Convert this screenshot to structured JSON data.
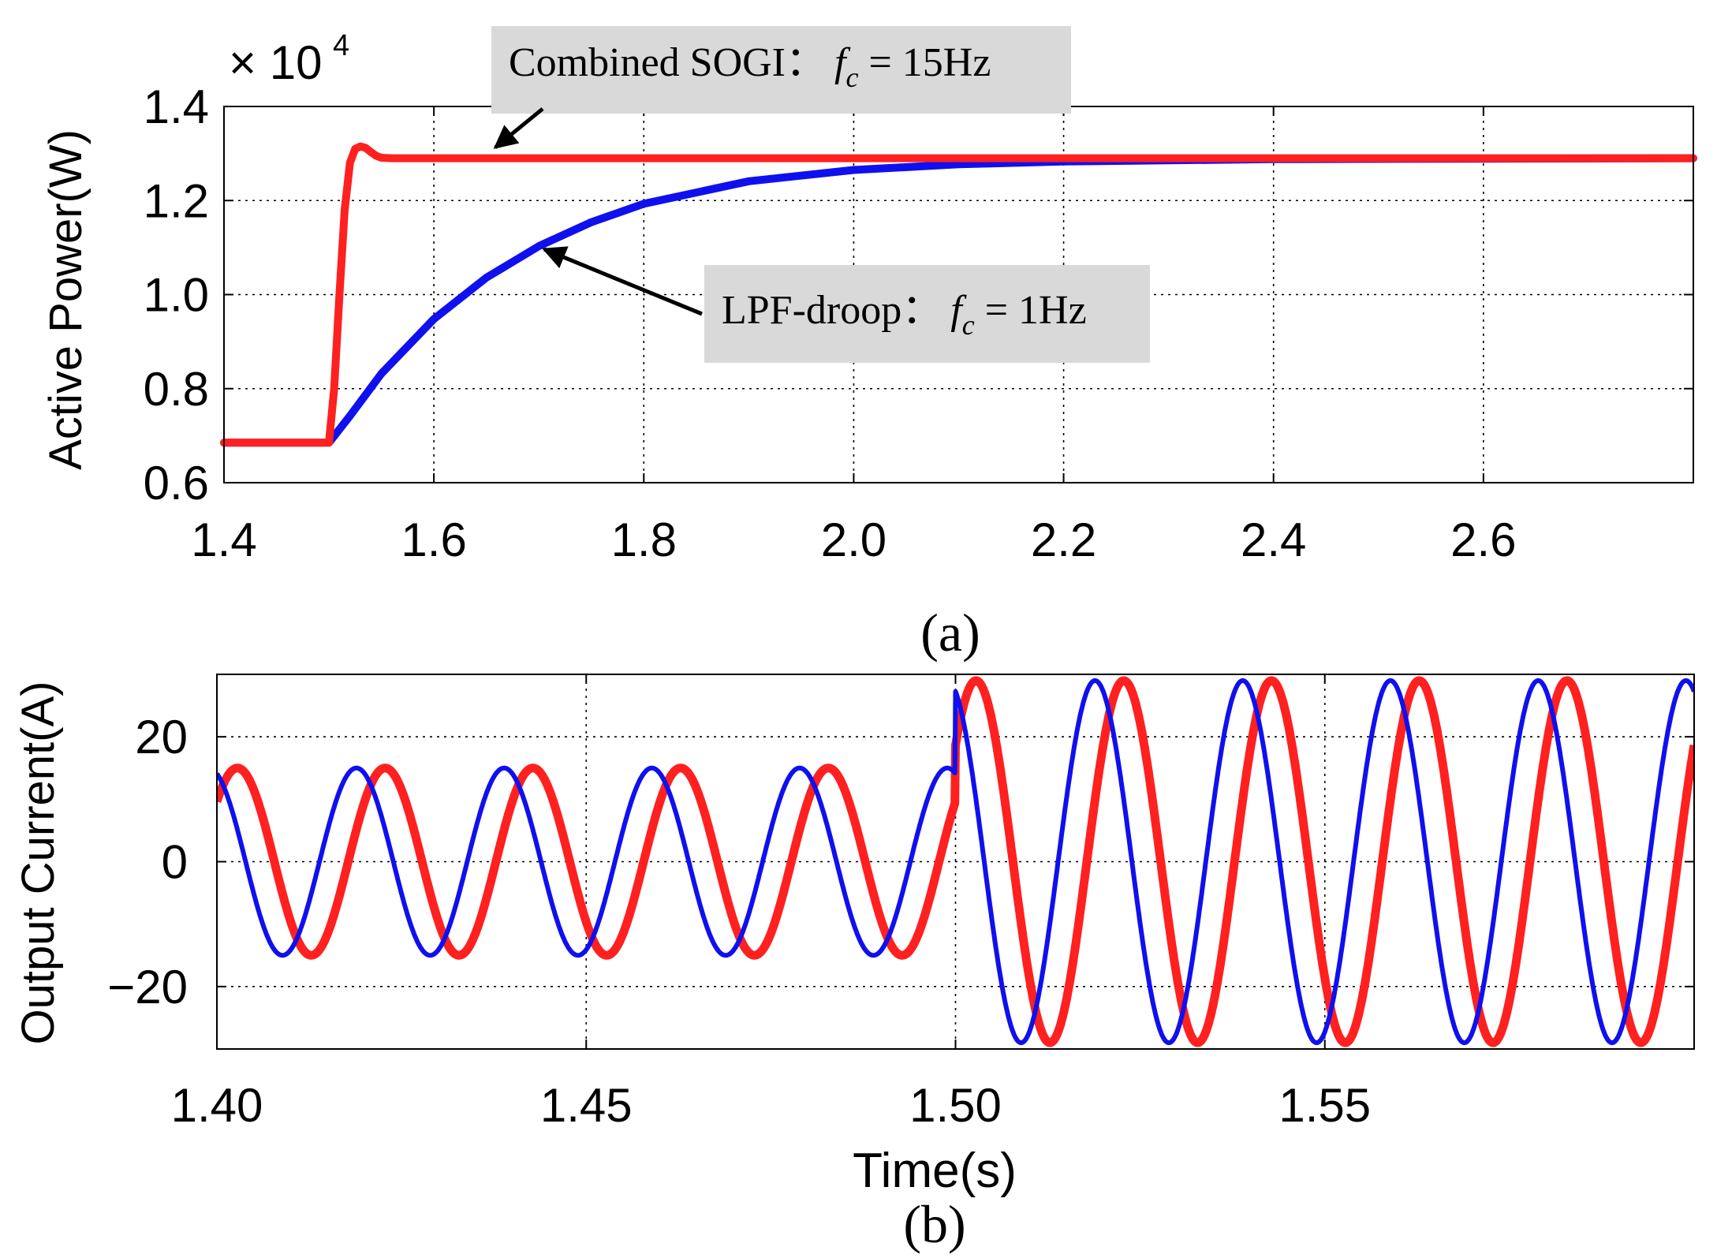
{
  "chart_data": [
    {
      "id": "a",
      "type": "line",
      "caption": "(a)",
      "ylabel": "Active Power(W)",
      "xlabel": "",
      "y_multiplier_base": "× 10",
      "y_multiplier_exp": "4",
      "xlim": [
        1.4,
        2.8
      ],
      "ylim": [
        0.6,
        1.4
      ],
      "x_ticks": [
        1.4,
        1.6,
        1.8,
        2.0,
        2.2,
        2.4,
        2.6
      ],
      "x_tick_labels": [
        "1.4",
        "1.6",
        "1.8",
        "2.0",
        "2.2",
        "2.4",
        "2.6"
      ],
      "y_ticks": [
        0.6,
        0.8,
        1.0,
        1.2,
        1.4
      ],
      "y_tick_labels": [
        "0.6",
        "0.8",
        "1.0",
        "1.2",
        "1.4"
      ],
      "grid": true,
      "series": [
        {
          "name": "Combined SOGI",
          "color": "#ff2020",
          "x": [
            1.4,
            1.5,
            1.505,
            1.51,
            1.515,
            1.52,
            1.525,
            1.53,
            1.535,
            1.54,
            1.545,
            1.55,
            1.56,
            1.58,
            1.7,
            2.0,
            2.4,
            2.8
          ],
          "y": [
            0.685,
            0.685,
            0.8,
            1.0,
            1.18,
            1.28,
            1.31,
            1.315,
            1.312,
            1.303,
            1.295,
            1.291,
            1.29,
            1.29,
            1.29,
            1.29,
            1.29,
            1.29
          ]
        },
        {
          "name": "LPF-droop",
          "color": "#1010ee",
          "x": [
            1.4,
            1.5,
            1.52,
            1.55,
            1.6,
            1.65,
            1.7,
            1.75,
            1.8,
            1.9,
            2.0,
            2.1,
            2.2,
            2.4,
            2.6,
            2.8
          ],
          "y": [
            0.685,
            0.685,
            0.742,
            0.832,
            0.948,
            1.036,
            1.103,
            1.154,
            1.193,
            1.241,
            1.265,
            1.277,
            1.283,
            1.288,
            1.289,
            1.29
          ]
        }
      ],
      "annotations": [
        {
          "label": "Combined SOGI：",
          "math_var": "f",
          "math_sub": "c",
          "math_rest": " = 15Hz",
          "target_series": "Combined SOGI"
        },
        {
          "label": "LPF-droop：",
          "math_var": "f",
          "math_sub": "c",
          "math_rest": " = 1Hz",
          "target_series": "LPF-droop"
        }
      ]
    },
    {
      "id": "b",
      "type": "line",
      "caption": "(b)",
      "ylabel": "Output Current(A)",
      "xlabel": "Time(s)",
      "xlim": [
        1.4,
        1.6
      ],
      "ylim": [
        -30,
        30
      ],
      "x_ticks": [
        1.4,
        1.45,
        1.5,
        1.55
      ],
      "x_tick_labels": [
        "1.40",
        "1.45",
        "1.50",
        "1.55"
      ],
      "y_ticks": [
        -20,
        0,
        20
      ],
      "y_tick_labels": [
        "−20",
        "0",
        "20"
      ],
      "grid": true,
      "series": [
        {
          "name": "Combined SOGI",
          "color": "#ff2020",
          "frequency_hz": 50,
          "amplitude_before": 15,
          "amplitude_after": 29,
          "phase_deg": 40,
          "step_time": 1.5
        },
        {
          "name": "LPF-droop",
          "color": "#1010ee",
          "frequency_hz": 50,
          "amplitude_before": 15,
          "amplitude_after": 29,
          "phase_deg": 110,
          "step_time": 1.5
        }
      ]
    }
  ]
}
